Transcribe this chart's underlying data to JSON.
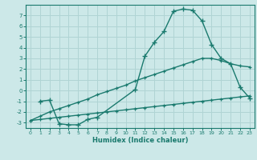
{
  "xlabel": "Humidex (Indice chaleur)",
  "background_color": "#cce8e8",
  "line_color": "#1a7a6e",
  "grid_color": "#b0d4d4",
  "xlim": [
    -0.5,
    23.5
  ],
  "ylim": [
    -3.5,
    8.0
  ],
  "yticks": [
    -3,
    -2,
    -1,
    0,
    1,
    2,
    3,
    4,
    5,
    6,
    7
  ],
  "xticks": [
    0,
    1,
    2,
    3,
    4,
    5,
    6,
    7,
    8,
    9,
    10,
    11,
    12,
    13,
    14,
    15,
    16,
    17,
    18,
    19,
    20,
    21,
    22,
    23
  ],
  "curve": {
    "x": [
      1,
      2,
      3,
      4,
      5,
      6,
      7,
      11,
      12,
      13,
      14,
      15,
      16,
      17,
      18,
      19,
      20,
      21,
      22,
      23
    ],
    "y": [
      -1.0,
      -0.9,
      -3.1,
      -3.2,
      -3.2,
      -2.7,
      -2.5,
      0.1,
      3.2,
      4.5,
      5.5,
      7.4,
      7.6,
      7.5,
      6.5,
      4.3,
      3.0,
      2.5,
      0.3,
      -0.7
    ]
  },
  "line_lower": {
    "x": [
      0,
      1,
      2,
      3,
      4,
      5,
      6,
      7,
      8,
      9,
      10,
      11,
      12,
      13,
      14,
      15,
      16,
      17,
      18,
      19,
      20,
      21,
      22,
      23
    ],
    "y": [
      -2.8,
      -2.7,
      -2.6,
      -2.5,
      -2.4,
      -2.3,
      -2.2,
      -2.1,
      -2.0,
      -1.9,
      -1.8,
      -1.7,
      -1.6,
      -1.5,
      -1.4,
      -1.3,
      -1.2,
      -1.1,
      -1.0,
      -0.9,
      -0.8,
      -0.7,
      -0.6,
      -0.5
    ]
  },
  "line_upper": {
    "x": [
      0,
      1,
      2,
      3,
      4,
      5,
      6,
      7,
      8,
      9,
      10,
      11,
      12,
      13,
      14,
      15,
      16,
      17,
      18,
      19,
      20,
      21,
      22,
      23
    ],
    "y": [
      -2.8,
      -2.4,
      -2.0,
      -1.7,
      -1.4,
      -1.1,
      -0.8,
      -0.4,
      -0.1,
      0.2,
      0.5,
      0.9,
      1.2,
      1.5,
      1.8,
      2.1,
      2.4,
      2.7,
      3.0,
      3.0,
      2.8,
      2.5,
      2.3,
      2.2
    ]
  }
}
